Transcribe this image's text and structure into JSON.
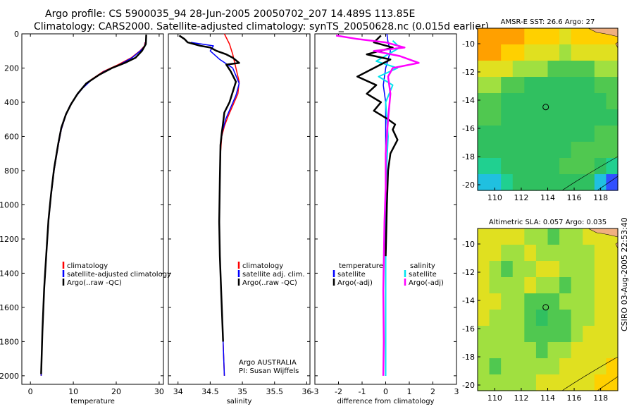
{
  "header": {
    "line1": "Argo profile: CS 5900035_94 28-Jun-2005 20050702_207 14.489S 113.85E",
    "line2": "Climatology: CARS2000. Satellite-adjusted climatology: synTS_20050628.nc (0.015d earlier)"
  },
  "stamp": "CSIRO 03-Aug-2005 22:53:40",
  "colors": {
    "climatology": "#ff0000",
    "satellite": "#0000ff",
    "argo": "#000000",
    "cyan": "#00e5ee",
    "magenta": "#ff00ff",
    "land": "#f0b080",
    "coast": "#000000",
    "float_marker": "#000000"
  },
  "chart_data": [
    {
      "id": "temperature",
      "type": "line",
      "xlabel": "temperature",
      "ylabel": "",
      "xlim": [
        -2,
        31
      ],
      "ylim": [
        2050,
        0
      ],
      "xticks": [
        0,
        10,
        20,
        30
      ],
      "yticks": [
        0,
        200,
        400,
        600,
        800,
        1000,
        1200,
        1400,
        1600,
        1800,
        2000
      ],
      "legend": [
        "climatology",
        "satellite-adjusted climatology",
        "Argo(..raw -QC)"
      ],
      "legend_location": "lower-right",
      "series": [
        {
          "name": "climatology",
          "color": "#ff0000",
          "width": 1.5,
          "x": [
            26.7,
            26.6,
            25.5,
            23.5,
            20.5,
            17,
            14,
            12,
            10.5,
            9.2,
            8.2,
            7.2,
            6.5,
            5.5,
            4.8,
            4.2,
            3.7,
            3.2,
            2.8,
            2.5
          ],
          "y": [
            50,
            70,
            100,
            140,
            180,
            220,
            270,
            320,
            370,
            420,
            480,
            560,
            650,
            800,
            950,
            1100,
            1300,
            1500,
            1750,
            2000
          ]
        },
        {
          "name": "satellite-adjusted climatology",
          "color": "#0000ff",
          "width": 1.5,
          "x": [
            26.8,
            26.7,
            25.6,
            23.7,
            20.8,
            17.2,
            14.2,
            12.1,
            10.5,
            9.2,
            8.2,
            7.2,
            6.5,
            5.5,
            4.8,
            4.2,
            3.7,
            3.2,
            2.8,
            2.5
          ],
          "y": [
            50,
            70,
            100,
            140,
            180,
            220,
            270,
            320,
            370,
            420,
            480,
            560,
            650,
            800,
            950,
            1100,
            1300,
            1500,
            1750,
            2000
          ]
        },
        {
          "name": "Argo(..raw -QC)",
          "color": "#000000",
          "width": 2.5,
          "x": [
            27,
            26.9,
            26,
            24.5,
            22,
            19,
            16,
            13,
            11,
            9.5,
            8.3,
            7.2,
            6.5,
            5.5,
            4.8,
            4.2,
            3.7,
            3.2,
            2.8,
            2.5
          ],
          "y": [
            5,
            60,
            100,
            140,
            170,
            200,
            240,
            290,
            350,
            410,
            470,
            550,
            640,
            790,
            940,
            1090,
            1290,
            1490,
            1740,
            1990
          ]
        }
      ]
    },
    {
      "id": "salinity",
      "type": "line",
      "xlabel": "salinity",
      "ylabel": "",
      "xlim": [
        33.85,
        36.05
      ],
      "ylim": [
        2050,
        0
      ],
      "xticks": [
        34,
        34.5,
        35,
        35.5,
        36
      ],
      "yticks": [
        0,
        200,
        400,
        600,
        800,
        1000,
        1200,
        1400,
        1600,
        1800,
        2000
      ],
      "legend": [
        "climatology",
        "satellite adj. clim.",
        "Argo(..raw -QC)"
      ],
      "legend_location": "lower-right",
      "annotations": [
        "Argo AUSTRALIA",
        "PI: Susan Wijffels"
      ],
      "series": [
        {
          "name": "climatology",
          "color": "#ff0000",
          "width": 1.5,
          "x": [
            34.72,
            34.8,
            34.85,
            34.9,
            34.95,
            34.93,
            34.85,
            34.78,
            34.72,
            34.68,
            34.66,
            34.65,
            34.64,
            34.65,
            34.67,
            34.7,
            34.72
          ],
          "y": [
            0,
            60,
            120,
            200,
            280,
            350,
            420,
            480,
            540,
            600,
            700,
            900,
            1100,
            1300,
            1500,
            1800,
            2000
          ]
        },
        {
          "name": "satellite adj. clim.",
          "color": "#0000ff",
          "width": 1.5,
          "x": [
            34.2,
            34.55,
            34.5,
            34.65,
            34.85,
            34.95,
            34.9,
            34.82,
            34.74,
            34.69,
            34.66,
            34.65,
            34.64,
            34.65,
            34.67,
            34.7,
            34.72
          ],
          "y": [
            50,
            70,
            100,
            150,
            200,
            290,
            360,
            430,
            500,
            570,
            650,
            850,
            1100,
            1300,
            1500,
            1800,
            2000
          ]
        },
        {
          "name": "Argo(..raw -QC)",
          "color": "#000000",
          "width": 2.5,
          "x": [
            34.02,
            34.1,
            34.15,
            34.25,
            34.35,
            34.5,
            34.6,
            34.75,
            34.85,
            34.95,
            34.75,
            34.82,
            34.9,
            34.85,
            34.8,
            34.72,
            34.7,
            34.68,
            34.66,
            34.65,
            34.64,
            34.65,
            34.67,
            34.7
          ],
          "y": [
            10,
            30,
            50,
            60,
            70,
            80,
            100,
            120,
            140,
            170,
            180,
            220,
            280,
            340,
            400,
            460,
            520,
            580,
            650,
            850,
            1100,
            1300,
            1500,
            1800
          ]
        }
      ]
    },
    {
      "id": "difference",
      "type": "line",
      "xlabel": "difference from climatology",
      "ylabel": "",
      "xlim": [
        -3,
        3
      ],
      "ylim": [
        2050,
        0
      ],
      "xticks": [
        -3,
        -2,
        -1,
        0,
        1,
        2,
        3
      ],
      "yticks": [
        0,
        200,
        400,
        600,
        800,
        1000,
        1200,
        1400,
        1600,
        1800,
        2000
      ],
      "legend_left_title": "temperature",
      "legend_left": [
        "satellite",
        "Argo(-adj)"
      ],
      "legend_right_title": "salinity",
      "legend_right": [
        "satellite",
        "Argo(-adj)"
      ],
      "series": [
        {
          "name": "temperature satellite",
          "color": "#0000ff",
          "width": 1.5,
          "x": [
            0.05,
            0.1,
            0.2,
            0.1,
            0,
            -0.1,
            0,
            0,
            0,
            0,
            0
          ],
          "y": [
            0,
            50,
            100,
            150,
            200,
            300,
            400,
            600,
            1000,
            1500,
            2000
          ]
        },
        {
          "name": "salinity satellite",
          "color": "#00e5ee",
          "width": 2,
          "x": [
            0.3,
            0.6,
            0.1,
            -0.4,
            0.5,
            -0.3,
            0.3,
            0,
            0.1,
            0,
            0,
            0
          ],
          "y": [
            40,
            80,
            120,
            160,
            200,
            250,
            300,
            400,
            600,
            900,
            1500,
            2000
          ]
        },
        {
          "name": "temperature Argo(-adj)",
          "color": "#000000",
          "width": 2.5,
          "x": [
            -0.2,
            -0.5,
            0.3,
            -0.8,
            0.2,
            -0.5,
            -1.2,
            -0.4,
            -0.8,
            -0.2,
            -0.5,
            0.1,
            0.4,
            0.3,
            0.5,
            0.2,
            0.1,
            0.05,
            0
          ],
          "y": [
            10,
            50,
            80,
            120,
            150,
            200,
            250,
            300,
            350,
            400,
            450,
            500,
            530,
            560,
            620,
            700,
            800,
            1000,
            1300
          ]
        },
        {
          "name": "salinity Argo(-adj)",
          "color": "#ff00ff",
          "width": 2.5,
          "x": [
            -2.1,
            -1.2,
            0,
            0.8,
            -0.5,
            0.6,
            1.4,
            0.3,
            0.1,
            0.2,
            0.1,
            0,
            0,
            -0.05,
            -0.1,
            -0.08,
            -0.1
          ],
          "y": [
            10,
            30,
            50,
            80,
            100,
            130,
            170,
            200,
            250,
            350,
            500,
            700,
            900,
            1100,
            1500,
            1800,
            2000
          ]
        }
      ]
    },
    {
      "id": "sst-map",
      "type": "heatmap",
      "title": "AMSR-E SST: 26.6 Argo: 27",
      "xlim": [
        108.7,
        119.3
      ],
      "ylim": [
        -20.4,
        -8.9
      ],
      "xticks": [
        110,
        112,
        114,
        116,
        118
      ],
      "yticks": [
        -10,
        -12,
        -14,
        -16,
        -18,
        -20
      ],
      "marker": {
        "lon": 113.85,
        "lat": -14.489
      },
      "colorscale": [
        "#3050ff",
        "#20c0e0",
        "#20d090",
        "#30c060",
        "#50c850",
        "#a0e040",
        "#e0e020",
        "#ffd000",
        "#ffa000",
        "#ff7000"
      ],
      "grid_values": [
        [
          0.93,
          0.92,
          0.9,
          0.86,
          0.8,
          0.76,
          0.74,
          0.72,
          0.74,
          0.76,
          0.78,
          0.8
        ],
        [
          0.88,
          0.86,
          0.82,
          0.78,
          0.72,
          0.66,
          0.62,
          0.6,
          0.62,
          0.64,
          0.68,
          0.72
        ],
        [
          0.72,
          0.68,
          0.64,
          0.6,
          0.54,
          0.5,
          0.46,
          0.44,
          0.44,
          0.48,
          0.52,
          0.56
        ],
        [
          0.56,
          0.5,
          0.44,
          0.4,
          0.36,
          0.34,
          0.32,
          0.32,
          0.34,
          0.36,
          0.4,
          0.46
        ],
        [
          0.46,
          0.42,
          0.38,
          0.34,
          0.32,
          0.3,
          0.3,
          0.3,
          0.32,
          0.34,
          0.36,
          0.4
        ],
        [
          0.42,
          0.4,
          0.36,
          0.34,
          0.32,
          0.3,
          0.3,
          0.3,
          0.32,
          0.34,
          0.36,
          0.38
        ],
        [
          0.38,
          0.36,
          0.34,
          0.32,
          0.3,
          0.3,
          0.3,
          0.32,
          0.34,
          0.36,
          0.4,
          0.42
        ],
        [
          0.34,
          0.32,
          0.3,
          0.3,
          0.32,
          0.34,
          0.34,
          0.36,
          0.4,
          0.42,
          0.44,
          0.44
        ],
        [
          0.24,
          0.26,
          0.3,
          0.32,
          0.34,
          0.36,
          0.38,
          0.4,
          0.42,
          0.42,
          0.38,
          0.26
        ],
        [
          0.12,
          0.16,
          0.22,
          0.28,
          0.32,
          0.34,
          0.36,
          0.36,
          0.36,
          0.3,
          0.14,
          0.02
        ]
      ]
    },
    {
      "id": "sla-map",
      "type": "heatmap",
      "title": "Altimetric SLA: 0.057 Argo: 0.035",
      "xlim": [
        108.7,
        119.3
      ],
      "ylim": [
        -20.4,
        -8.9
      ],
      "xticks": [
        110,
        112,
        114,
        116,
        118
      ],
      "yticks": [
        -10,
        -12,
        -14,
        -16,
        -18,
        -20
      ],
      "marker": {
        "lon": 113.85,
        "lat": -14.489
      },
      "colorscale": [
        "#3050ff",
        "#20c0e0",
        "#20d090",
        "#30c060",
        "#50c850",
        "#a0e040",
        "#e0e020",
        "#ffd000",
        "#ffa000",
        "#ff7000"
      ],
      "grid_values": [
        [
          0.7,
          0.68,
          0.66,
          0.64,
          0.6,
          0.5,
          0.44,
          0.5,
          0.6,
          0.64,
          0.68,
          0.7
        ],
        [
          0.66,
          0.62,
          0.5,
          0.54,
          0.62,
          0.6,
          0.56,
          0.5,
          0.52,
          0.6,
          0.66,
          0.7
        ],
        [
          0.64,
          0.56,
          0.44,
          0.5,
          0.6,
          0.64,
          0.62,
          0.58,
          0.56,
          0.6,
          0.62,
          0.66
        ],
        [
          0.66,
          0.6,
          0.52,
          0.56,
          0.62,
          0.6,
          0.52,
          0.48,
          0.54,
          0.6,
          0.62,
          0.64
        ],
        [
          0.68,
          0.62,
          0.6,
          0.58,
          0.48,
          0.4,
          0.44,
          0.5,
          0.58,
          0.6,
          0.62,
          0.66
        ],
        [
          0.64,
          0.6,
          0.58,
          0.54,
          0.44,
          0.38,
          0.42,
          0.46,
          0.54,
          0.6,
          0.66,
          0.7
        ],
        [
          0.6,
          0.56,
          0.52,
          0.5,
          0.44,
          0.4,
          0.42,
          0.48,
          0.56,
          0.64,
          0.7,
          0.72
        ],
        [
          0.56,
          0.5,
          0.5,
          0.54,
          0.5,
          0.46,
          0.5,
          0.56,
          0.62,
          0.66,
          0.7,
          0.72
        ],
        [
          0.52,
          0.48,
          0.5,
          0.54,
          0.58,
          0.56,
          0.58,
          0.62,
          0.66,
          0.7,
          0.72,
          0.74
        ],
        [
          0.5,
          0.5,
          0.54,
          0.58,
          0.6,
          0.62,
          0.62,
          0.64,
          0.68,
          0.72,
          0.74,
          0.74
        ]
      ]
    }
  ]
}
